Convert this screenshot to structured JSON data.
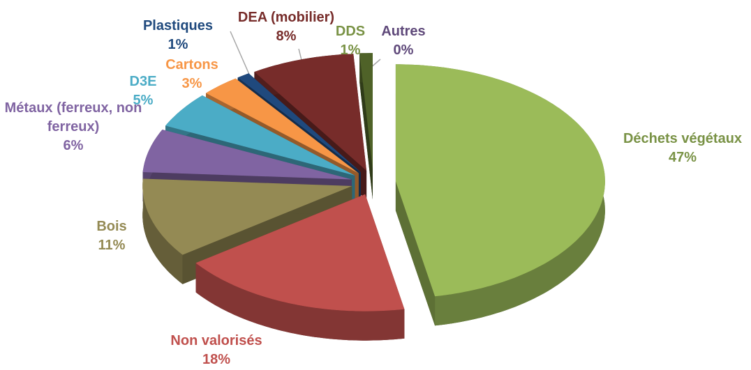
{
  "chart_data": {
    "type": "pie3d",
    "categories": [
      "Déchets végétaux",
      "Non valorisés",
      "Bois",
      "Métaux (ferreux, non ferreux)",
      "D3E",
      "Cartons",
      "Plastiques",
      "DEA (mobilier)",
      "DDS",
      "Autres"
    ],
    "values": [
      47,
      18,
      11,
      6,
      5,
      3,
      1,
      8,
      1,
      0
    ],
    "value_labels": [
      "47%",
      "18%",
      "11%",
      "6%",
      "5%",
      "3%",
      "1%",
      "8%",
      "1%",
      "0%"
    ],
    "colors": [
      "#9bbb59",
      "#c0504d",
      "#948a54",
      "#8064a2",
      "#4bacc6",
      "#f79646",
      "#1f497d",
      "#772c2a",
      "#4f6228",
      "#5f497a"
    ]
  }
}
